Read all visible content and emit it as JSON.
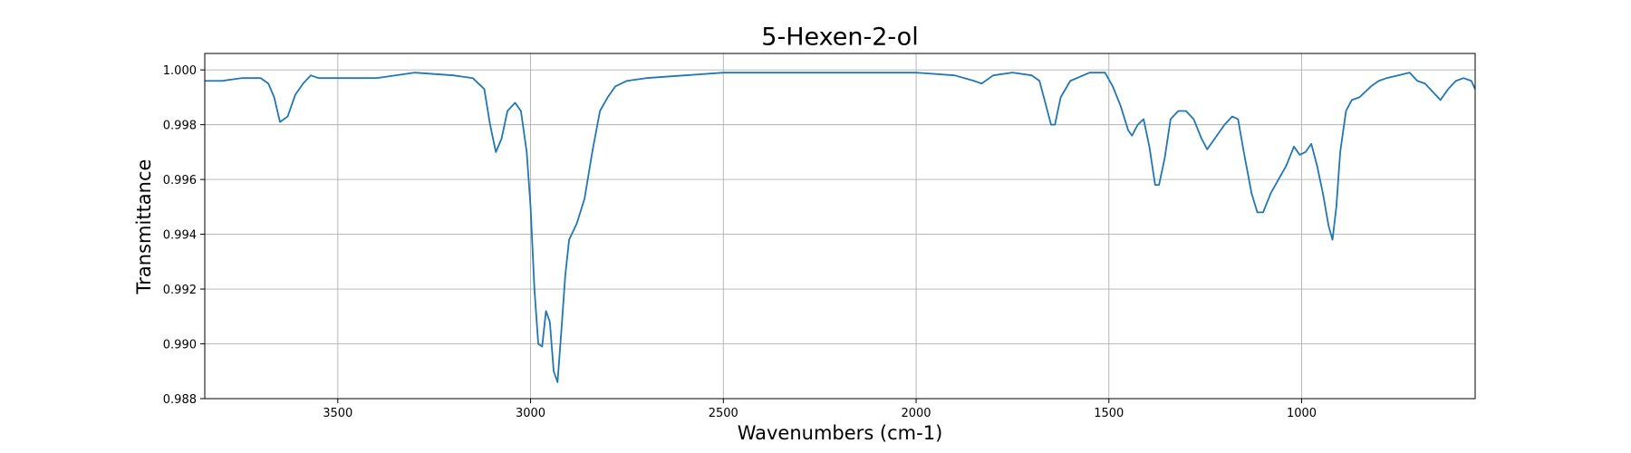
{
  "chart_data": {
    "type": "line",
    "title": "5-Hexen-2-ol",
    "x_label": "Wavenumbers (cm-1)",
    "y_label": "Transmittance",
    "color": "#1f77b4",
    "grid": true,
    "xlim": [
      3845,
      550
    ],
    "ylim": [
      0.988,
      1.0006
    ],
    "xticks": [
      3500,
      3000,
      2500,
      2000,
      1500,
      1000
    ],
    "yticks": [
      {
        "value": 0.988,
        "label": "0.988"
      },
      {
        "value": 0.99,
        "label": "0.990"
      },
      {
        "value": 0.992,
        "label": "0.992"
      },
      {
        "value": 0.994,
        "label": "0.994"
      },
      {
        "value": 0.996,
        "label": "0.996"
      },
      {
        "value": 0.998,
        "label": "0.998"
      },
      {
        "value": 1.0,
        "label": "1.000"
      }
    ],
    "x": [
      3845,
      3800,
      3750,
      3700,
      3680,
      3665,
      3650,
      3630,
      3610,
      3590,
      3570,
      3550,
      3500,
      3400,
      3300,
      3200,
      3150,
      3120,
      3105,
      3090,
      3075,
      3060,
      3040,
      3025,
      3010,
      3000,
      2990,
      2980,
      2970,
      2960,
      2950,
      2940,
      2930,
      2920,
      2910,
      2900,
      2880,
      2860,
      2840,
      2820,
      2800,
      2780,
      2750,
      2700,
      2600,
      2500,
      2400,
      2300,
      2200,
      2100,
      2000,
      1900,
      1850,
      1830,
      1800,
      1750,
      1700,
      1680,
      1665,
      1650,
      1640,
      1625,
      1600,
      1550,
      1510,
      1490,
      1470,
      1450,
      1440,
      1425,
      1410,
      1395,
      1380,
      1370,
      1355,
      1340,
      1320,
      1300,
      1280,
      1260,
      1245,
      1225,
      1200,
      1180,
      1165,
      1150,
      1130,
      1115,
      1100,
      1080,
      1060,
      1040,
      1020,
      1005,
      990,
      975,
      960,
      945,
      930,
      920,
      910,
      900,
      885,
      870,
      850,
      820,
      800,
      780,
      750,
      720,
      700,
      680,
      660,
      640,
      620,
      600,
      580,
      560,
      550
    ],
    "values": [
      0.9996,
      0.9996,
      0.9997,
      0.9997,
      0.9995,
      0.999,
      0.9981,
      0.9983,
      0.9991,
      0.9995,
      0.9998,
      0.9997,
      0.9997,
      0.9997,
      0.9999,
      0.9998,
      0.9997,
      0.9993,
      0.998,
      0.997,
      0.9975,
      0.9985,
      0.9988,
      0.9985,
      0.997,
      0.995,
      0.992,
      0.99,
      0.9899,
      0.9912,
      0.9908,
      0.989,
      0.9886,
      0.9905,
      0.9925,
      0.9938,
      0.9944,
      0.9953,
      0.997,
      0.9985,
      0.999,
      0.9994,
      0.9996,
      0.9997,
      0.9998,
      0.9999,
      0.9999,
      0.9999,
      0.9999,
      0.9999,
      0.9999,
      0.9998,
      0.9996,
      0.9995,
      0.9998,
      0.9999,
      0.9998,
      0.9996,
      0.9988,
      0.998,
      0.998,
      0.999,
      0.9996,
      0.9999,
      0.9999,
      0.9994,
      0.9987,
      0.9978,
      0.9976,
      0.998,
      0.9982,
      0.9972,
      0.9958,
      0.9958,
      0.9968,
      0.9982,
      0.9985,
      0.9985,
      0.9982,
      0.9975,
      0.9971,
      0.9975,
      0.998,
      0.9983,
      0.9982,
      0.997,
      0.9955,
      0.9948,
      0.9948,
      0.9955,
      0.996,
      0.9965,
      0.9972,
      0.9969,
      0.997,
      0.9973,
      0.9965,
      0.9955,
      0.9943,
      0.9938,
      0.995,
      0.997,
      0.9985,
      0.9989,
      0.999,
      0.9994,
      0.9996,
      0.9997,
      0.9998,
      0.9999,
      0.9996,
      0.9995,
      0.9992,
      0.9989,
      0.9993,
      0.9996,
      0.9997,
      0.9996,
      0.9993
    ]
  }
}
